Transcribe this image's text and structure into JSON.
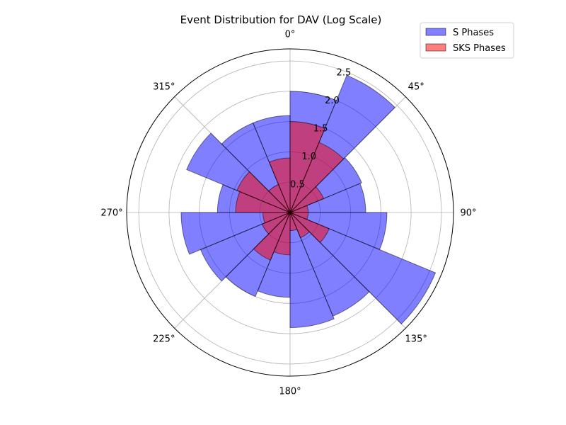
{
  "chart_data": {
    "type": "bar",
    "projection": "polar",
    "title": "Event Distribution for DAV (Log Scale)",
    "theta_zero": "north",
    "theta_direction": "clockwise",
    "bin_width_deg": 22.5,
    "theta_tick_labels": [
      "0°",
      "45°",
      "90°",
      "135°",
      "180°",
      "225°",
      "270°",
      "315°"
    ],
    "radial_ticks": [
      0.5,
      1.0,
      1.5,
      2.0,
      2.5
    ],
    "radial_tick_labels": [
      "0.5",
      "1.0",
      "1.5",
      "2.0",
      "2.5"
    ],
    "rlim": [
      0,
      2.7
    ],
    "grid": true,
    "legend_position": "top-right",
    "bin_centers_deg": [
      11.25,
      33.75,
      56.25,
      78.75,
      101.25,
      123.75,
      146.25,
      168.75,
      191.25,
      213.75,
      236.25,
      258.75,
      281.25,
      303.75,
      326.25,
      348.75
    ],
    "series": [
      {
        "name": "S Phases",
        "color": "#0000ff",
        "values": [
          2.0,
          2.45,
          1.28,
          1.25,
          1.6,
          2.6,
          1.85,
          1.9,
          1.4,
          1.5,
          1.6,
          1.8,
          1.2,
          1.85,
          1.6,
          1.6
        ]
      },
      {
        "name": "SKS Phases",
        "color": "#ff0000",
        "values": [
          1.5,
          1.25,
          0.6,
          0.3,
          0.3,
          0.7,
          0.45,
          0.3,
          0.7,
          0.85,
          0.5,
          0.45,
          0.9,
          0.95,
          0.5,
          0.9
        ]
      }
    ]
  }
}
